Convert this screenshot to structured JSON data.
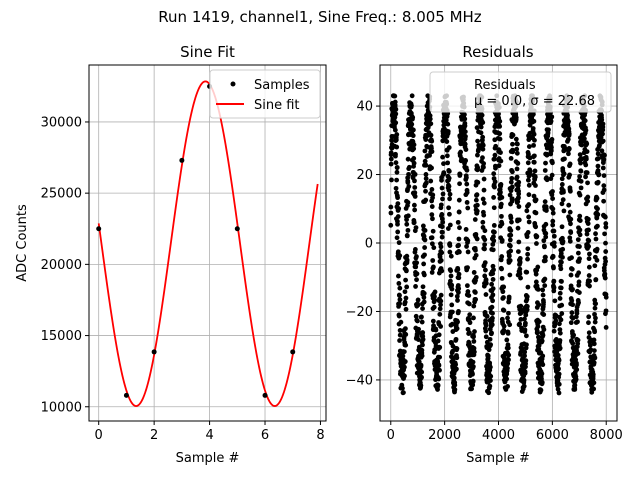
{
  "suptitle": "Run 1419, channel1, Sine Freq.: 8.005 MHz",
  "chart_data": [
    {
      "type": "scatter+line",
      "title": "Sine Fit",
      "xlabel": "Sample #",
      "ylabel": "ADC Counts",
      "xlim": [
        -0.35,
        8.2
      ],
      "ylim": [
        9000,
        34000
      ],
      "xticks": [
        0,
        2,
        4,
        6,
        8
      ],
      "xtick_labels": [
        "0",
        "2",
        "4",
        "6",
        "8"
      ],
      "yticks": [
        10000,
        15000,
        20000,
        25000,
        30000
      ],
      "ytick_labels": [
        "10000",
        "15000",
        "20000",
        "25000",
        "30000"
      ],
      "grid": true,
      "legend": {
        "position": "top-right",
        "entries": [
          {
            "label": "Samples",
            "marker": "dot",
            "color": "#000000"
          },
          {
            "label": "Sine fit",
            "marker": "line",
            "color": "#ff0000"
          }
        ]
      },
      "samples": {
        "name": "Samples",
        "x": [
          0,
          1,
          2,
          3,
          4,
          5,
          6,
          7
        ],
        "y": [
          22500,
          10800,
          13850,
          27300,
          32500,
          22500,
          10800,
          13850
        ]
      },
      "fit": {
        "name": "Sine fit",
        "offset": 21450,
        "amplitude": 11400,
        "period": 5,
        "zero_crossing": 0.1,
        "x_range": [
          0,
          7.9
        ]
      }
    },
    {
      "type": "scatter",
      "title": "Residuals",
      "xlabel": "Sample #",
      "ylabel": "",
      "xlim": [
        -400,
        8400
      ],
      "ylim": [
        -52,
        52
      ],
      "xticks": [
        0,
        2000,
        4000,
        6000,
        8000
      ],
      "xtick_labels": [
        "0",
        "2000",
        "4000",
        "6000",
        "8000"
      ],
      "yticks": [
        -40,
        -20,
        0,
        20,
        40
      ],
      "ytick_labels": [
        "−40",
        "−20",
        "0",
        "20",
        "40"
      ],
      "grid": true,
      "legend": {
        "position": "top-right",
        "entries": [
          {
            "label": "Residuals",
            "marker": "dot",
            "color": "#000000"
          }
        ],
        "stats": "μ = 0.0, σ = 22.68"
      },
      "residuals": {
        "name": "Residuals",
        "n_points": 8000,
        "x_range": [
          0,
          8000
        ],
        "y_range": [
          -47,
          43
        ],
        "envelope_amplitude": 40,
        "beat_period": 640,
        "mean": 0.0,
        "sigma": 22.68
      }
    }
  ]
}
